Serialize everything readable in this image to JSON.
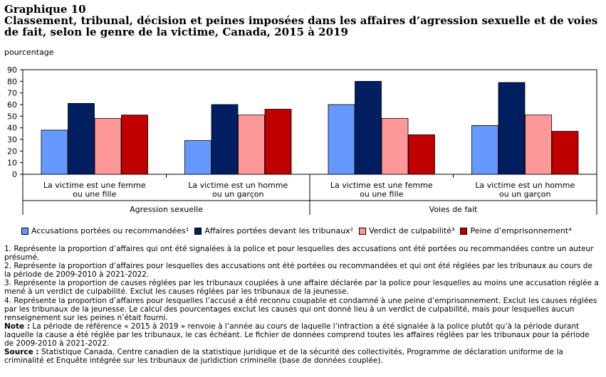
{
  "title": {
    "line1": "Graphique 10",
    "line2": "Classement, tribunal, décision et peines imposées dans les affaires d’agression sexuelle et de voies",
    "line3": "de fait, selon le genre de la victime, Canada, 2015 à 2019"
  },
  "chart_data": {
    "type": "bar",
    "ylabel": "pourcentage",
    "ylim": [
      0,
      90
    ],
    "yticks": [
      "0",
      "10",
      "20",
      "30",
      "40",
      "50",
      "60",
      "70",
      "80",
      "90"
    ],
    "grid": false,
    "legend_position": "bottom",
    "groups": [
      "Agression sexuelle",
      "Voies de fait"
    ],
    "categories": [
      [
        "La victime est une femme",
        "ou une fille"
      ],
      [
        "La victime est un homme",
        "ou un garçon"
      ],
      [
        "La victime est une femme",
        "ou une fille"
      ],
      [
        "La victime est un homme",
        "ou un garçon"
      ]
    ],
    "series": [
      {
        "name": "Accusations portées ou recommandées¹",
        "color": "#6699ff",
        "values": [
          38,
          29,
          60,
          42
        ]
      },
      {
        "name": "Affaires portées devant les tribunaux²",
        "color": "#001e60",
        "values": [
          61,
          60,
          80,
          79
        ]
      },
      {
        "name": "Verdict de culpabilité³",
        "color": "#ff9999",
        "values": [
          48,
          51,
          48,
          51
        ]
      },
      {
        "name": "Peine d’emprisonnement⁴",
        "color": "#c00000",
        "values": [
          51,
          56,
          34,
          37
        ]
      }
    ]
  },
  "notes": {
    "n1": "1. Représente la proportion d’affaires qui ont été signalées à la police et pour lesquelles des accusations ont été portées ou recommandées contre un auteur présumé.",
    "n2": "2. Représente la proportion d’affaires pour lesquelles des accusations ont été portées ou recommandées et qui ont été réglées par les tribunaux au cours de la période de 2009-2010 à 2021-2022.",
    "n3": "3. Représente la proportion de causes réglées par les tribunaux couplées à une affaire déclarée par la police pour lesquelles au moins une accusation réglée a mené à un verdict de culpabilité. Exclut les causes réglées par les tribunaux de la jeunesse.",
    "n4": "4. Représente la proportion d’affaires pour lesquelles l’accusé a été reconnu coupable et condamné à une peine d’emprisonnement. Exclut les causes réglées par les tribunaux de la jeunesse. Le calcul des pourcentages exclut les causes qui ont donné lieu à un verdict de culpabilité, mais pour lesquelles aucun renseignement sur les peines n’était fourni.",
    "note_label": "Note :",
    "note_text": " La période de référence « 2015 à 2019 » renvoie à l’année au cours de laquelle l’infraction a été signalée à la police plutôt qu’à la période durant laquelle la cause a été réglée par les tribunaux, le cas échéant. Le fichier de données comprend toutes les affaires réglées par les tribunaux pour la période de 2009-2010 à 2021-2022.",
    "source_label": "Source :",
    "source_text": " Statistique Canada, Centre canadien de la statistique juridique et de la sécurité des collectivités, Programme de déclaration uniforme de la criminalité et Enquête intégrée sur les tribunaux de juridiction criminelle (base de données couplée)."
  }
}
